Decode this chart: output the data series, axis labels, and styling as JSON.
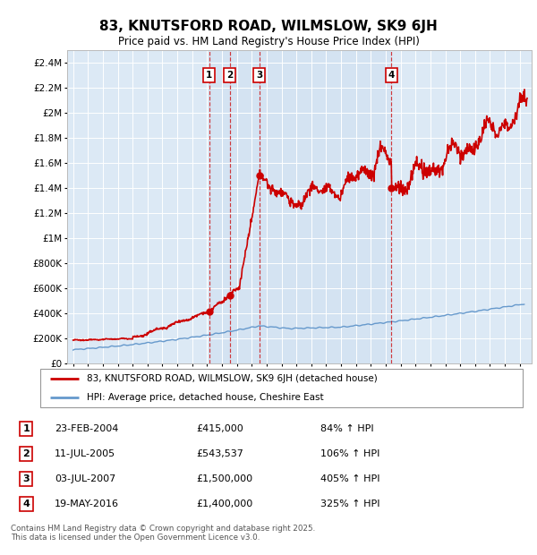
{
  "title": "83, KNUTSFORD ROAD, WILMSLOW, SK9 6JH",
  "subtitle": "Price paid vs. HM Land Registry's House Price Index (HPI)",
  "plot_bg_color": "#dce9f5",
  "outer_bg_color": "#ffffff",
  "xlim_left": 1994.6,
  "xlim_right": 2025.8,
  "ylim": [
    0,
    2500000
  ],
  "yticks": [
    0,
    200000,
    400000,
    600000,
    800000,
    1000000,
    1200000,
    1400000,
    1600000,
    1800000,
    2000000,
    2200000,
    2400000
  ],
  "ytick_labels": [
    "£0",
    "£200K",
    "£400K",
    "£600K",
    "£800K",
    "£1M",
    "£1.2M",
    "£1.4M",
    "£1.6M",
    "£1.8M",
    "£2M",
    "£2.2M",
    "£2.4M"
  ],
  "transactions": [
    {
      "num": 1,
      "date": "23-FEB-2004",
      "price_str": "£415,000",
      "pct": "84%",
      "x": 2004.14
    },
    {
      "num": 2,
      "date": "11-JUL-2005",
      "price_str": "£543,537",
      "pct": "106%",
      "x": 2005.53
    },
    {
      "num": 3,
      "date": "03-JUL-2007",
      "price_str": "£1,500,000",
      "pct": "405%",
      "x": 2007.5
    },
    {
      "num": 4,
      "date": "19-MAY-2016",
      "price_str": "£1,400,000",
      "pct": "325%",
      "x": 2016.38
    }
  ],
  "red_line_color": "#cc0000",
  "blue_line_color": "#6699cc",
  "shade_color": "#cddff0",
  "footer": "Contains HM Land Registry data © Crown copyright and database right 2025.\nThis data is licensed under the Open Government Licence v3.0.",
  "legend_red_label": "83, KNUTSFORD ROAD, WILMSLOW, SK9 6JH (detached house)",
  "legend_blue_label": "HPI: Average price, detached house, Cheshire East"
}
